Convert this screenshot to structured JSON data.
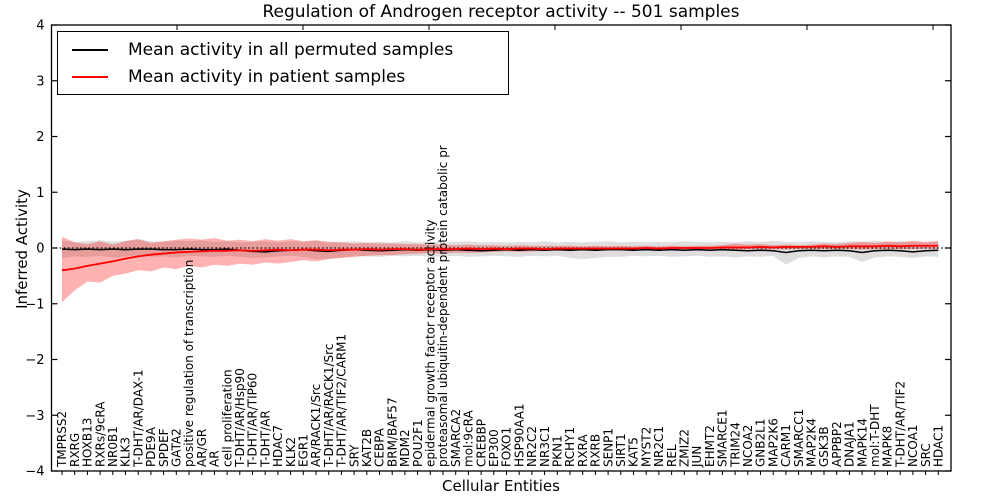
{
  "figure": {
    "background": "#ffffff",
    "text_color": "#000000"
  },
  "chart_data": {
    "type": "line",
    "title": "Regulation of Androgen receptor activity -- 501 samples",
    "xlabel": "Cellular Entities",
    "ylabel": "Inferred Activity",
    "ylim": [
      -4,
      4
    ],
    "yticks": [
      4,
      3,
      2,
      1,
      0,
      -1,
      -2,
      -3,
      -4
    ],
    "grid": false,
    "zero_line": {
      "style": "dotted",
      "color": "#000000",
      "value": 0
    },
    "legend": {
      "position": "upper left",
      "entries": [
        {
          "label": "Mean activity in all permuted samples",
          "color": "#000000"
        },
        {
          "label": "Mean activity in patient samples",
          "color": "#ff0000"
        }
      ]
    },
    "categories": [
      "TMPRSS2",
      "RXRG",
      "HOXB13",
      "RXRs/9cRA",
      "NR0B1",
      "KLK3",
      "T-DHT/AR/DAX-1",
      "PDE9A",
      "SPDEF",
      "GATA2",
      "positive regulation of transcription",
      "AR/GR",
      "AR",
      "cell proliferation",
      "T-DHT/AR/Hsp90",
      "T-DHT/AR/TIP60",
      "T-DHT/AR",
      "HDAC7",
      "KLK2",
      "EGR1",
      "AR/RACK1/Src",
      "T-DHT/AR/RACK1/Src",
      "T-DHT/AR/TIF2/CARM1",
      "SRY",
      "KAT2B",
      "CEBPA",
      "BRM/BAF57",
      "MDM2",
      "POU2F1",
      "epidermal growth factor receptor activity",
      "proteasomal ubiquitin-dependent protein catabolic pr",
      "SMARCA2",
      "mol:9cRA",
      "CREBBP",
      "EP300",
      "FOXO1",
      "HSP90AA1",
      "NR2C2",
      "NR3C1",
      "PKN1",
      "RCHY1",
      "RXRA",
      "RXRB",
      "SENP1",
      "SIRT1",
      "KAT5",
      "MYST2",
      "NR2C1",
      "REL",
      "ZMIZ2",
      "JUN",
      "EHMT2",
      "SMARCE1",
      "TRIM24",
      "NCOA2",
      "GNB2L1",
      "MAP2K6",
      "CARM1",
      "SMARCC1",
      "MAP2K4",
      "GSK3B",
      "APPBP2",
      "DNAJA1",
      "MAPK14",
      "mol:T-DHT",
      "MAPK8",
      "T-DHT/AR/TIF2",
      "NCOA1",
      "SRC",
      "HDAC1"
    ],
    "series": [
      {
        "name": "Mean activity in all permuted samples",
        "color": "#000000",
        "values": [
          -0.02,
          -0.03,
          -0.02,
          -0.03,
          -0.02,
          -0.03,
          -0.02,
          -0.02,
          -0.03,
          -0.03,
          -0.02,
          -0.03,
          -0.03,
          -0.02,
          -0.04,
          -0.06,
          -0.07,
          -0.05,
          -0.04,
          -0.03,
          -0.05,
          -0.06,
          -0.04,
          -0.03,
          -0.04,
          -0.05,
          -0.04,
          -0.03,
          -0.04,
          -0.03,
          -0.04,
          -0.03,
          -0.04,
          -0.05,
          -0.04,
          -0.03,
          -0.04,
          -0.03,
          -0.04,
          -0.03,
          -0.04,
          -0.03,
          -0.04,
          -0.03,
          -0.03,
          -0.04,
          -0.03,
          -0.04,
          -0.03,
          -0.04,
          -0.03,
          -0.04,
          -0.03,
          -0.04,
          -0.05,
          -0.04,
          -0.05,
          -0.08,
          -0.05,
          -0.04,
          -0.05,
          -0.04,
          -0.05,
          -0.08,
          -0.05,
          -0.04,
          -0.05,
          -0.07,
          -0.05,
          -0.04
        ]
      },
      {
        "name": "Mean activity in patient samples",
        "color": "#ff0000",
        "values": [
          -0.4,
          -0.37,
          -0.32,
          -0.28,
          -0.24,
          -0.19,
          -0.15,
          -0.12,
          -0.1,
          -0.08,
          -0.07,
          -0.06,
          -0.05,
          -0.05,
          -0.04,
          -0.05,
          -0.04,
          -0.03,
          -0.04,
          -0.03,
          -0.03,
          -0.04,
          -0.03,
          -0.03,
          -0.02,
          -0.03,
          -0.02,
          -0.02,
          -0.03,
          -0.02,
          -0.02,
          -0.02,
          -0.01,
          -0.02,
          -0.01,
          -0.02,
          -0.01,
          -0.01,
          -0.02,
          -0.01,
          -0.01,
          -0.01,
          -0.01,
          -0.01,
          -0.01,
          -0.01,
          0.0,
          -0.01,
          0.0,
          0.0,
          0.0,
          0.0,
          0.01,
          0.01,
          0.01,
          0.02,
          0.01,
          0.02,
          0.02,
          0.02,
          0.03,
          0.02,
          0.03,
          0.03,
          0.03,
          0.04,
          0.03,
          0.04,
          0.04,
          0.04
        ]
      }
    ],
    "bands": [
      {
        "name": "permuted samples spread",
        "color": "#000000",
        "alpha": 0.13,
        "upper": [
          0.13,
          0.11,
          0.12,
          0.14,
          0.11,
          0.13,
          0.16,
          0.12,
          0.11,
          0.13,
          0.12,
          0.14,
          0.11,
          0.12,
          0.1,
          0.11,
          0.12,
          0.1,
          0.12,
          0.11,
          0.13,
          0.1,
          0.11,
          0.12,
          0.1,
          0.11,
          0.1,
          0.12,
          0.1,
          0.11,
          0.1,
          0.11,
          0.12,
          0.1,
          0.11,
          0.1,
          0.11,
          0.1,
          0.12,
          0.1,
          0.11,
          0.1,
          0.11,
          0.12,
          0.1,
          0.11,
          0.1,
          0.11,
          0.1,
          0.12,
          0.11,
          0.1,
          0.11,
          0.1,
          0.12,
          0.11,
          0.13,
          0.11,
          0.1,
          0.12,
          0.11,
          0.1,
          0.12,
          0.11,
          0.13,
          0.1,
          0.12,
          0.11,
          0.1,
          0.12
        ],
        "lower": [
          -0.18,
          -0.15,
          -0.16,
          -0.14,
          -0.17,
          -0.15,
          -0.14,
          -0.16,
          -0.15,
          -0.17,
          -0.14,
          -0.15,
          -0.16,
          -0.14,
          -0.16,
          -0.18,
          -0.17,
          -0.15,
          -0.14,
          -0.16,
          -0.2,
          -0.19,
          -0.17,
          -0.15,
          -0.15,
          -0.16,
          -0.14,
          -0.15,
          -0.14,
          -0.16,
          -0.15,
          -0.14,
          -0.16,
          -0.15,
          -0.14,
          -0.15,
          -0.16,
          -0.14,
          -0.15,
          -0.14,
          -0.18,
          -0.2,
          -0.18,
          -0.16,
          -0.16,
          -0.14,
          -0.15,
          -0.14,
          -0.16,
          -0.15,
          -0.14,
          -0.16,
          -0.15,
          -0.17,
          -0.15,
          -0.16,
          -0.14,
          -0.3,
          -0.18,
          -0.15,
          -0.17,
          -0.15,
          -0.16,
          -0.25,
          -0.17,
          -0.15,
          -0.16,
          -0.18,
          -0.15,
          -0.16
        ]
      },
      {
        "name": "patient samples spread",
        "color": "#ff0000",
        "alpha": 0.3,
        "upper": [
          0.2,
          0.1,
          0.07,
          0.12,
          0.06,
          0.12,
          0.16,
          0.09,
          0.12,
          0.15,
          0.17,
          0.15,
          0.18,
          0.13,
          0.15,
          0.12,
          0.16,
          0.13,
          0.16,
          0.12,
          0.14,
          0.11,
          0.1,
          0.08,
          0.09,
          0.08,
          0.08,
          0.07,
          0.07,
          0.06,
          0.06,
          0.05,
          0.06,
          0.05,
          0.05,
          0.04,
          0.05,
          0.04,
          0.04,
          0.04,
          0.04,
          0.03,
          0.04,
          0.03,
          0.04,
          0.03,
          0.04,
          0.03,
          0.04,
          0.03,
          0.04,
          0.04,
          0.05,
          0.08,
          0.06,
          0.07,
          0.05,
          0.06,
          0.05,
          0.06,
          0.08,
          0.07,
          0.09,
          0.11,
          0.09,
          0.12,
          0.1,
          0.13,
          0.11,
          0.12
        ],
        "lower": [
          -0.97,
          -0.76,
          -0.6,
          -0.62,
          -0.5,
          -0.46,
          -0.4,
          -0.42,
          -0.35,
          -0.38,
          -0.32,
          -0.35,
          -0.3,
          -0.32,
          -0.28,
          -0.3,
          -0.26,
          -0.28,
          -0.25,
          -0.22,
          -0.24,
          -0.2,
          -0.18,
          -0.16,
          -0.14,
          -0.13,
          -0.13,
          -0.11,
          -0.1,
          -0.09,
          -0.1,
          -0.08,
          -0.09,
          -0.08,
          -0.07,
          -0.06,
          -0.07,
          -0.06,
          -0.05,
          -0.05,
          -0.05,
          -0.04,
          -0.05,
          -0.04,
          -0.04,
          -0.04,
          -0.03,
          -0.04,
          -0.03,
          -0.03,
          -0.03,
          -0.03,
          -0.02,
          -0.03,
          -0.02,
          -0.03,
          -0.02,
          -0.03,
          -0.02,
          -0.02,
          -0.02,
          -0.02,
          -0.02,
          -0.03,
          -0.02,
          -0.02,
          -0.02,
          -0.02,
          -0.01,
          -0.02
        ]
      }
    ]
  }
}
